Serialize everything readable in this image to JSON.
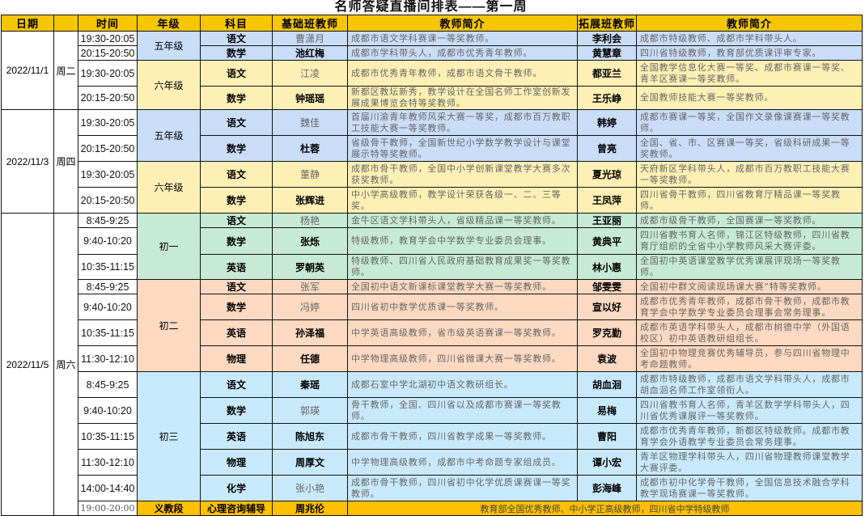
{
  "title": "名师答疑直播间排表——第一周",
  "headers": {
    "date": "日期",
    "weekday": "",
    "time": "时间",
    "grade": "年级",
    "subject": "科目",
    "basic_teacher": "基础班教师",
    "basic_intro": "教师简介",
    "ext_teacher": "拓展班教师",
    "ext_intro": "教师简介"
  },
  "colors": {
    "header": "#f7c600",
    "grade5": "#c9dcf8",
    "grade6": "#fef0b4",
    "chu1": "#c6ead6",
    "chu2": "#fdd9c1",
    "chu3": "#c8e9fb",
    "last_row": "#ffc000"
  },
  "days": [
    {
      "date": "2022/11/1",
      "weekday": "周二",
      "grades": [
        {
          "name": "五年级",
          "color_key": "grade5",
          "lessons": [
            {
              "time": "19:30-20:05",
              "subject": "语文",
              "basic_teacher": "曹潇月",
              "bold": false,
              "basic_intro": "成都市语文学科赛课一等奖教师。",
              "ext_teacher": "李利会",
              "ext_intro": "成都市特级教师、成都市学科带头人。"
            },
            {
              "time": "20:15-20:50",
              "subject": "数学",
              "basic_teacher": "池红梅",
              "bold": true,
              "basic_intro": "成都市学科带头人，成都市优秀青年教师。",
              "ext_teacher": "黄慧章",
              "ext_intro": "四川省特级教师，教育部优质课评审专家。"
            }
          ]
        },
        {
          "name": "六年级",
          "color_key": "grade6",
          "lessons": [
            {
              "time": "19:30-20:05",
              "subject": "语文",
              "basic_teacher": "江凌",
              "bold": false,
              "basic_intro": "成都市优秀青年教师，成都市语文骨干教师。",
              "ext_teacher": "都亚兰",
              "ext_intro": "全国教学信息化大赛一等奖、成都市赛课一等奖、青羊区赛课一等奖教师。"
            },
            {
              "time": "20:15-20:50",
              "subject": "数学",
              "basic_teacher": "钟瑶瑶",
              "bold": true,
              "basic_intro": "新都区教坛新秀，教学设计在全国名师工作室创新发展成果博览会特等奖教师。",
              "ext_teacher": "王乐峥",
              "ext_intro": "全国教师技能大赛一等奖教师。"
            }
          ]
        }
      ]
    },
    {
      "date": "2022/11/3",
      "weekday": "周四",
      "grades": [
        {
          "name": "五年级",
          "color_key": "grade5",
          "lessons": [
            {
              "time": "19:30-20:05",
              "subject": "语文",
              "basic_teacher": "魏佳",
              "bold": false,
              "basic_intro": "首届川渝青年教师风采大赛一等奖，成都市百万教职工技能大赛一等奖教师。",
              "ext_teacher": "韩婷",
              "ext_intro": "成都市赛课一等奖，全国作文录像课赛课一等奖教师。"
            },
            {
              "time": "20:15-20:50",
              "subject": "数学",
              "basic_teacher": "杜蓉",
              "bold": true,
              "basic_intro": "省级骨干教师，全国新世纪小学数学教学设计与课堂展示特等奖教师。",
              "ext_teacher": "曾亮",
              "ext_intro": "全国、省、市、区赛课一等奖，省级科研成果一等奖教师。"
            }
          ]
        },
        {
          "name": "六年级",
          "color_key": "grade6",
          "lessons": [
            {
              "time": "19:30-20:05",
              "subject": "语文",
              "basic_teacher": "董静",
              "bold": false,
              "basic_intro": "成都市骨干教师，全国中小学创新课堂教学大赛多次获奖教师。",
              "ext_teacher": "夏光琼",
              "ext_intro": "天府新区学科带头人，成都市百万教职工技能大赛一等奖教师。"
            },
            {
              "time": "20:15-20:50",
              "subject": "数学",
              "basic_teacher": "张辉进",
              "bold": true,
              "basic_intro": "中小学高级教师，教学设计荣获各级一、二、三等奖。",
              "ext_teacher": "王凤萍",
              "ext_intro": "四川省骨干教师，四川省教育厅精品课一等奖教师。"
            }
          ]
        }
      ]
    },
    {
      "date": "2022/11/5",
      "weekday": "周六",
      "grades": [
        {
          "name": "初一",
          "color_key": "chu1",
          "lessons": [
            {
              "time": "8:45-9:25",
              "subject": "语文",
              "basic_teacher": "杨艳",
              "bold": false,
              "basic_intro": "金牛区语文学科带头人，省级精品课一等奖教师。",
              "ext_teacher": "王亚丽",
              "ext_intro": "成都市级骨干教师，全国赛课一等奖教师。"
            },
            {
              "time": "9:40-10:20",
              "subject": "数学",
              "basic_teacher": "张烁",
              "bold": true,
              "basic_intro": "特级教师，教育学会中学数学专业委员会理事。",
              "ext_teacher": "黄典平",
              "ext_intro": "四川省教书育人名师，锦江区特级教师，四川省教育厅组织的全省中小学教师风采大赛评委。"
            },
            {
              "time": "10:35-11:15",
              "subject": "英语",
              "basic_teacher": "罗朝英",
              "bold": true,
              "basic_intro": "特级教师、四川省人民政府基础教育成果奖一等奖教师。",
              "ext_teacher": "林小惠",
              "ext_intro": "全国初中英语课堂教学优秀课展评现场一等奖教师。"
            }
          ]
        },
        {
          "name": "初二",
          "color_key": "chu2",
          "lessons": [
            {
              "time": "8:45-9:25",
              "subject": "语文",
              "basic_teacher": "张军",
              "bold": false,
              "basic_intro": "全国初中语文新课标课堂教学大赛一等奖教师。",
              "ext_teacher": "邹雯雯",
              "ext_intro": "全国初中群文阅读现场课大赛”特等奖教师。"
            },
            {
              "time": "9:40-10:20",
              "subject": "数学",
              "basic_teacher": "冯婷",
              "bold": false,
              "basic_intro": "四川省初中数学优质课一等奖教师。",
              "ext_teacher": "宣以好",
              "ext_intro": "成都市优秀青年教师，成都市骨干教师，成都市教育学会中学数学专业委员会理事会常务理事。"
            },
            {
              "time": "10:35-11:15",
              "subject": "英语",
              "basic_teacher": "孙泽福",
              "bold": true,
              "basic_intro": "中学英语高级教师，省市级英语赛课一等奖教师。",
              "ext_teacher": "罗克勤",
              "ext_intro": "成都市英语学科带头人，成都市树德中学（外国语校区）初中英语教研组组长。"
            },
            {
              "time": "11:30-12:10",
              "subject": "物理",
              "basic_teacher": "任德",
              "bold": true,
              "basic_intro": "中学物理高级教师，四川省微课大赛一等奖教师。",
              "ext_teacher": "袁波",
              "ext_intro": "全国初中物理竞赛优秀辅导员，参与四川省物理中考命题教师。"
            }
          ]
        },
        {
          "name": "初三",
          "color_key": "chu3",
          "lessons": [
            {
              "time": "8:45-9:25",
              "subject": "语文",
              "basic_teacher": "秦瑶",
              "bold": true,
              "basic_intro": "成都石室中学北湖初中语文教研组长。",
              "ext_teacher": "胡血洄",
              "ext_intro": "成都市特级教师，成都市语文学科带头人，成都市胡血洄名师工作室领衔人。"
            },
            {
              "time": "9:40-10:20",
              "subject": "数学",
              "basic_teacher": "郭瑛",
              "bold": false,
              "basic_intro": "骨干教师，全国、四川省以及成都市赛课一等奖教师。",
              "ext_teacher": "易梅",
              "ext_intro": "四川省教书育人名师，青羊区数学学科带头人，四川省优秀课展评一等奖教师。"
            },
            {
              "time": "10:35-11:15",
              "subject": "英语",
              "basic_teacher": "陈旭东",
              "bold": true,
              "basic_intro": "成都市骨干教师，四川省教学成果一等奖教师。",
              "ext_teacher": "曹阳",
              "ext_intro": "成都市优秀青年教师，新都区特级教师。成都市教育学会外语教学专业委员会常务理事。"
            },
            {
              "time": "11:30-12:10",
              "subject": "物理",
              "basic_teacher": "周厚文",
              "bold": true,
              "basic_intro": "中学物理高级教师，成都市中考命题专家组成员。",
              "ext_teacher": "谭小宏",
              "ext_intro": "青羊区物理学科带头人，四川省物理教师课堂教学大赛评委。"
            },
            {
              "time": "14:00-14:40",
              "subject": "化学",
              "basic_teacher": "张小艳",
              "bold": false,
              "basic_intro": "成都市骨干教师，四川省初中化学优质课赛课一等奖教师。",
              "ext_teacher": "彭海峰",
              "ext_intro": "成都市初中化学骨干教师，全国信息技术融合学科教学现场赛课一等奖教师。"
            }
          ]
        }
      ],
      "extra": {
        "time": "19:00-20:00",
        "grade": "义教段",
        "subject": "心理咨询辅导",
        "teacher": "周兆伦",
        "intro": "教育部全国优秀教师、中小学正高级教师，四川省中学特级教师"
      }
    }
  ]
}
